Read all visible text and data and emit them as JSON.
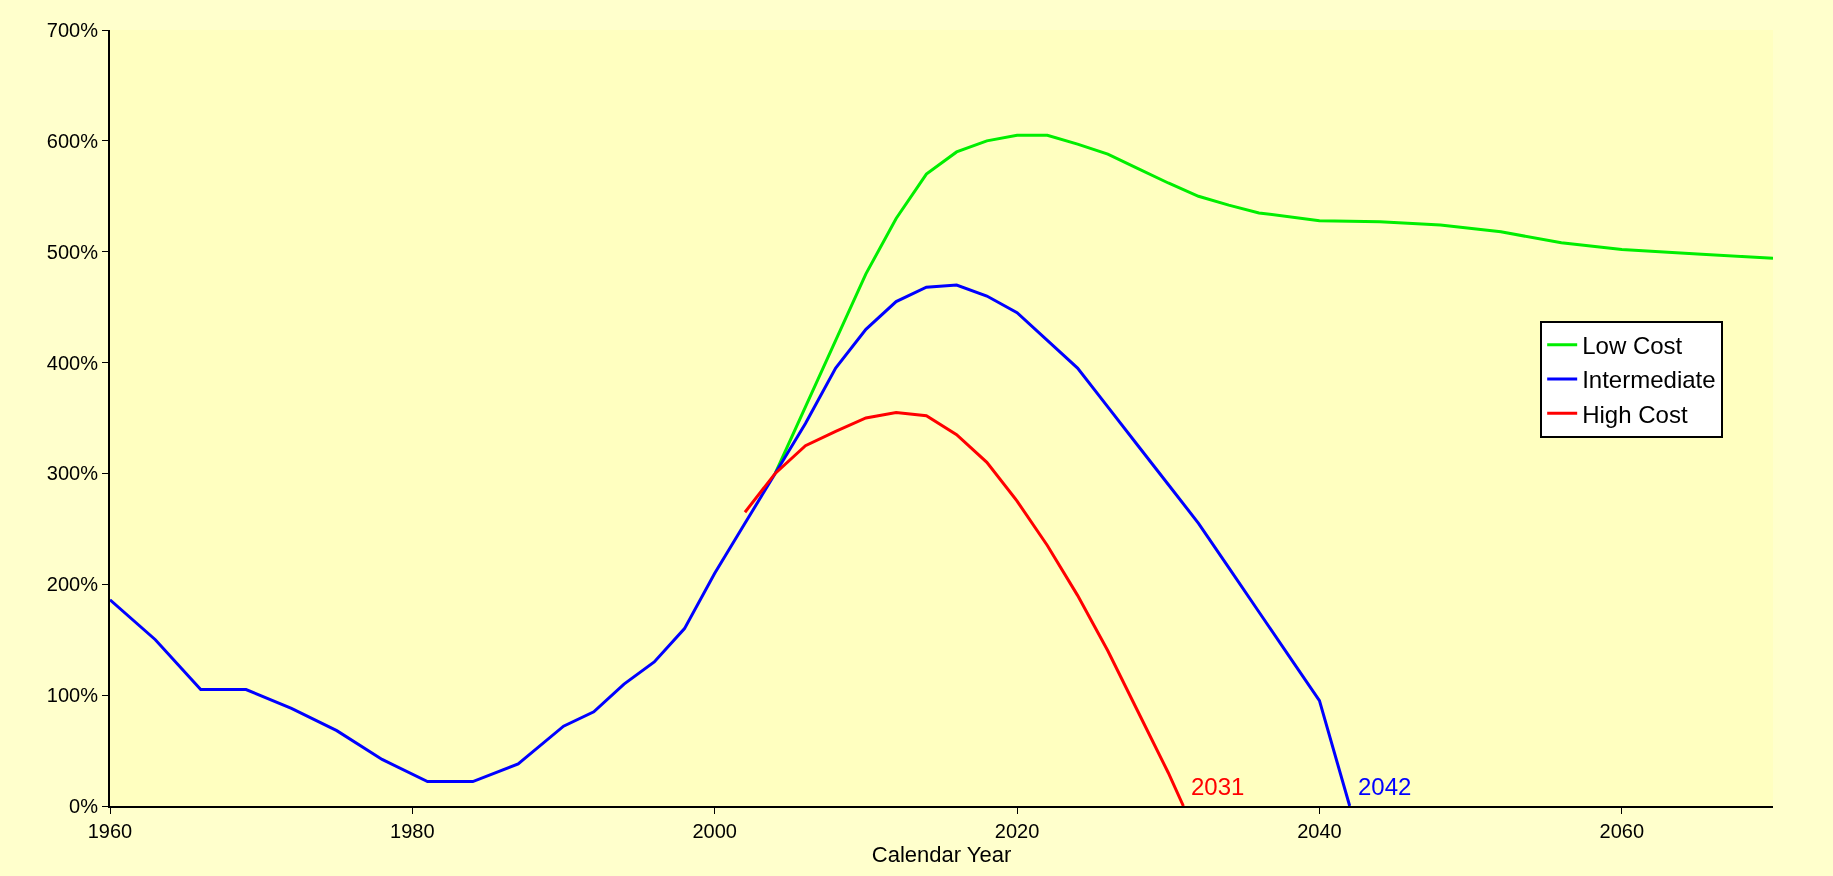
{
  "chart_data": {
    "type": "line",
    "xlabel": "Calendar Year",
    "xlim": [
      1960,
      2070
    ],
    "xticks": [
      1960,
      1980,
      2000,
      2020,
      2040,
      2060
    ],
    "ylim": [
      0,
      700
    ],
    "yticks": [
      {
        "value": 0,
        "label": "0%"
      },
      {
        "value": 100,
        "label": "100%"
      },
      {
        "value": 200,
        "label": "200%"
      },
      {
        "value": 300,
        "label": "300%"
      },
      {
        "value": 400,
        "label": "400%"
      },
      {
        "value": 500,
        "label": "500%"
      },
      {
        "value": 600,
        "label": "600%"
      },
      {
        "value": 700,
        "label": "700%"
      }
    ],
    "grid": false,
    "legend": "right",
    "marker": "none",
    "line_style": "solid",
    "series": [
      {
        "name": "Low Cost",
        "color": "#00ee00",
        "x": [
          2004,
          2006,
          2008,
          2010,
          2012,
          2014,
          2016,
          2018,
          2020,
          2022,
          2024,
          2026,
          2028,
          2030,
          2032,
          2034,
          2036,
          2040,
          2044,
          2048,
          2052,
          2056,
          2060,
          2065,
          2070
        ],
        "values": [
          300,
          360,
          420,
          480,
          530,
          570,
          590,
          600,
          605,
          605,
          597,
          588,
          575,
          562,
          550,
          542,
          535,
          528,
          527,
          524,
          518,
          508,
          502,
          498,
          494
        ]
      },
      {
        "name": "Intermediate",
        "color": "#0000ff",
        "x": [
          1960,
          1963,
          1966,
          1969,
          1972,
          1975,
          1978,
          1981,
          1984,
          1987,
          1990,
          1992,
          1994,
          1996,
          1998,
          2000,
          2002,
          2004,
          2006,
          2008,
          2010,
          2012,
          2014,
          2016,
          2018,
          2020,
          2022,
          2024,
          2026,
          2028,
          2030,
          2032,
          2034,
          2036,
          2038,
          2040,
          2042
        ],
        "values": [
          186,
          150,
          105,
          105,
          88,
          68,
          42,
          22,
          22,
          38,
          72,
          85,
          110,
          130,
          160,
          210,
          255,
          300,
          345,
          395,
          430,
          455,
          468,
          470,
          460,
          445,
          420,
          395,
          360,
          325,
          290,
          255,
          215,
          175,
          135,
          95,
          0
        ]
      },
      {
        "name": "High Cost",
        "color": "#ff0000",
        "x": [
          2002,
          2004,
          2006,
          2008,
          2010,
          2012,
          2014,
          2016,
          2018,
          2020,
          2022,
          2024,
          2026,
          2028,
          2030,
          2031
        ],
        "values": [
          265,
          300,
          325,
          338,
          350,
          355,
          352,
          335,
          310,
          275,
          235,
          190,
          140,
          85,
          30,
          0
        ]
      }
    ],
    "annotations": [
      {
        "text": "2031",
        "x": 2031,
        "y": 0
      },
      {
        "text": "2042",
        "x": 2042,
        "y": 0
      }
    ]
  }
}
